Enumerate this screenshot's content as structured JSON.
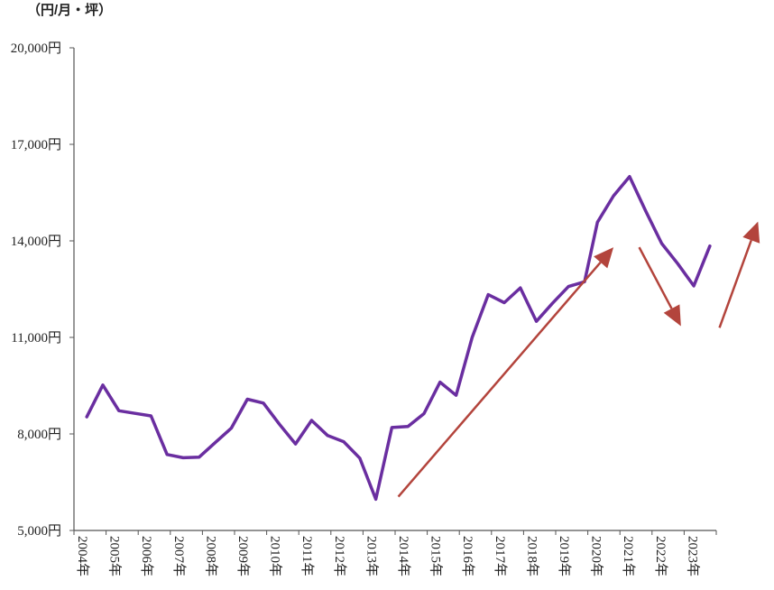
{
  "chart_data": {
    "type": "line",
    "unit_label": "（円/月・坪）",
    "ylim": [
      5000,
      20000
    ],
    "y_ticks": [
      {
        "value": 5000,
        "label": "5,000円"
      },
      {
        "value": 8000,
        "label": "8,000円"
      },
      {
        "value": 11000,
        "label": "11,000円"
      },
      {
        "value": 14000,
        "label": "14,000円"
      },
      {
        "value": 17000,
        "label": "17,000円"
      },
      {
        "value": 20000,
        "label": "20,000円"
      }
    ],
    "x_range": [
      2004.0,
      2024.0
    ],
    "x_ticks": [
      {
        "value": 2004,
        "label": "2004年"
      },
      {
        "value": 2005,
        "label": "2005年"
      },
      {
        "value": 2006,
        "label": "2006年"
      },
      {
        "value": 2007,
        "label": "2007年"
      },
      {
        "value": 2008,
        "label": "2008年"
      },
      {
        "value": 2009,
        "label": "2009年"
      },
      {
        "value": 2010,
        "label": "2010年"
      },
      {
        "value": 2011,
        "label": "2011年"
      },
      {
        "value": 2012,
        "label": "2012年"
      },
      {
        "value": 2013,
        "label": "2013年"
      },
      {
        "value": 2014,
        "label": "2014年"
      },
      {
        "value": 2015,
        "label": "2015年"
      },
      {
        "value": 2016,
        "label": "2016年"
      },
      {
        "value": 2017,
        "label": "2017年"
      },
      {
        "value": 2018,
        "label": "2018年"
      },
      {
        "value": 2019,
        "label": "2019年"
      },
      {
        "value": 2020,
        "label": "2020年"
      },
      {
        "value": 2021,
        "label": "2021年"
      },
      {
        "value": 2022,
        "label": "2022年"
      },
      {
        "value": 2023,
        "label": "2023年"
      }
    ],
    "series": [
      {
        "color": "#6a2ea0",
        "points": [
          {
            "x": 2004.4,
            "y": 8530
          },
          {
            "x": 2004.9,
            "y": 9520
          },
          {
            "x": 2005.4,
            "y": 8720
          },
          {
            "x": 2005.9,
            "y": 8640
          },
          {
            "x": 2006.4,
            "y": 8560
          },
          {
            "x": 2006.9,
            "y": 7360
          },
          {
            "x": 2007.4,
            "y": 7260
          },
          {
            "x": 2007.9,
            "y": 7280
          },
          {
            "x": 2008.4,
            "y": 7730
          },
          {
            "x": 2008.9,
            "y": 8180
          },
          {
            "x": 2009.4,
            "y": 9080
          },
          {
            "x": 2009.9,
            "y": 8960
          },
          {
            "x": 2010.4,
            "y": 8300
          },
          {
            "x": 2010.9,
            "y": 7690
          },
          {
            "x": 2011.4,
            "y": 8420
          },
          {
            "x": 2011.9,
            "y": 7950
          },
          {
            "x": 2012.4,
            "y": 7760
          },
          {
            "x": 2012.9,
            "y": 7250
          },
          {
            "x": 2013.4,
            "y": 5970
          },
          {
            "x": 2013.9,
            "y": 8200
          },
          {
            "x": 2014.4,
            "y": 8230
          },
          {
            "x": 2014.9,
            "y": 8630
          },
          {
            "x": 2015.4,
            "y": 9610
          },
          {
            "x": 2015.9,
            "y": 9200
          },
          {
            "x": 2016.4,
            "y": 11000
          },
          {
            "x": 2016.9,
            "y": 12330
          },
          {
            "x": 2017.4,
            "y": 12080
          },
          {
            "x": 2017.9,
            "y": 12540
          },
          {
            "x": 2018.4,
            "y": 11500
          },
          {
            "x": 2018.9,
            "y": 12060
          },
          {
            "x": 2019.4,
            "y": 12580
          },
          {
            "x": 2019.9,
            "y": 12730
          },
          {
            "x": 2020.3,
            "y": 14580
          },
          {
            "x": 2020.8,
            "y": 15400
          },
          {
            "x": 2021.3,
            "y": 16000
          },
          {
            "x": 2021.8,
            "y": 14930
          },
          {
            "x": 2022.3,
            "y": 13920
          },
          {
            "x": 2022.8,
            "y": 13290
          },
          {
            "x": 2023.3,
            "y": 12600
          },
          {
            "x": 2023.8,
            "y": 13840
          }
        ]
      }
    ],
    "annotations": [
      {
        "type": "arrow",
        "color": "#b3443c",
        "from": {
          "x": 2014.1,
          "y": 6050
        },
        "to": {
          "x": 2020.8,
          "y": 13800
        }
      },
      {
        "type": "arrow",
        "color": "#b3443c",
        "from": {
          "x": 2021.6,
          "y": 13800
        },
        "to": {
          "x": 2022.9,
          "y": 11350
        }
      },
      {
        "type": "arrow",
        "color": "#b3443c",
        "from": {
          "x": 2024.1,
          "y": 11300
        },
        "to": {
          "x": 2025.3,
          "y": 14600
        }
      }
    ],
    "grid": false,
    "legend": "none"
  }
}
